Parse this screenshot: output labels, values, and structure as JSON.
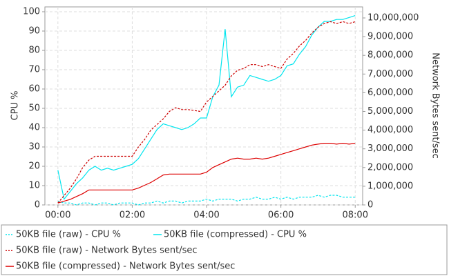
{
  "chart_data": {
    "type": "line",
    "y_label": "CPU %",
    "y2_label": "Network Bytes sent/sec",
    "x": [
      0,
      10,
      20,
      30,
      40,
      50,
      60,
      70,
      80,
      90,
      100,
      110,
      120,
      130,
      140,
      150,
      160,
      170,
      180,
      190,
      200,
      210,
      220,
      230,
      240,
      250,
      260,
      270,
      280,
      290,
      300,
      310,
      320,
      330,
      340,
      350,
      360,
      370,
      380,
      390,
      400,
      410,
      420,
      430,
      440,
      450,
      460,
      470,
      480
    ],
    "xlim": [
      -21,
      492
    ],
    "xticks": [
      {
        "value": 0,
        "label": "00:00"
      },
      {
        "value": 120,
        "label": "02:00"
      },
      {
        "value": 240,
        "label": "04:00"
      },
      {
        "value": 360,
        "label": "06:00"
      },
      {
        "value": 480,
        "label": "08:00"
      }
    ],
    "ylim": [
      0,
      102.5
    ],
    "yticks": [
      0,
      10,
      20,
      30,
      40,
      50,
      60,
      70,
      80,
      90,
      100
    ],
    "y2lim": [
      0,
      10590000
    ],
    "y2ticks": [
      0,
      {
        "value": 1000000,
        "label": "1,000,000"
      },
      {
        "value": 2000000,
        "label": "2,000,000"
      },
      {
        "value": 3000000,
        "label": "3,000,000"
      },
      {
        "value": 4000000,
        "label": "4,000,000"
      },
      {
        "value": 5000000,
        "label": "5,000,000"
      },
      {
        "value": 6000000,
        "label": "6,000,000"
      },
      {
        "value": 7000000,
        "label": "7,000,000"
      },
      {
        "value": 8000000,
        "label": "8,000,000"
      },
      {
        "value": 9000000,
        "label": "9,000,000"
      },
      {
        "value": 10000000,
        "label": "10,000,000"
      }
    ],
    "grid": true,
    "series": [
      {
        "name": "50KB file (raw) - CPU %",
        "color": "#00e5ee",
        "line_style": "dashed",
        "values": [
          2,
          1,
          1,
          0,
          1,
          1,
          0,
          1,
          1,
          0,
          1,
          1,
          1,
          0,
          1,
          1,
          2,
          1,
          2,
          2,
          1,
          2,
          2,
          2,
          3,
          2,
          3,
          3,
          3,
          2,
          3,
          3,
          4,
          3,
          3,
          4,
          3,
          4,
          3,
          4,
          4,
          4,
          5,
          4,
          5,
          5,
          4,
          4,
          4
        ]
      },
      {
        "name": "50KB file (compressed) - CPU %",
        "color": "#00e5ee",
        "line_style": "solid",
        "values": [
          18,
          3,
          7,
          11,
          14,
          18,
          20,
          18,
          19,
          18,
          19,
          20,
          21,
          24,
          29,
          34,
          39,
          42,
          41,
          40,
          39,
          40,
          42,
          45,
          45,
          56,
          62,
          91,
          56,
          61,
          62,
          67,
          66,
          65,
          64,
          65,
          67,
          72,
          73,
          78,
          82,
          88,
          92,
          95,
          95,
          96,
          96,
          97,
          98
        ]
      },
      {
        "name": "50KB file (raw) - Network Bytes sent/sec",
        "color": "#cc0000",
        "line_style": "dashed",
        "axis": "y2",
        "values": [
          100000,
          500000,
          900000,
          1400000,
          2000000,
          2400000,
          2600000,
          2600000,
          2600000,
          2600000,
          2600000,
          2600000,
          2600000,
          3100000,
          3500000,
          4000000,
          4300000,
          4600000,
          5000000,
          5200000,
          5100000,
          5100000,
          5050000,
          5000000,
          5500000,
          5800000,
          6100000,
          6400000,
          6900000,
          7200000,
          7300000,
          7500000,
          7500000,
          7400000,
          7500000,
          7400000,
          7300000,
          7800000,
          8100000,
          8500000,
          8800000,
          9200000,
          9500000,
          9700000,
          9800000,
          9700000,
          9800000,
          9700000,
          9800000
        ]
      },
      {
        "name": "50KB file (compressed) - Network Bytes sent/sec",
        "color": "#dd0000",
        "line_style": "solid",
        "axis": "y2",
        "values": [
          100000,
          200000,
          300000,
          450000,
          600000,
          800000,
          800000,
          800000,
          800000,
          800000,
          800000,
          800000,
          800000,
          900000,
          1050000,
          1200000,
          1400000,
          1600000,
          1650000,
          1650000,
          1650000,
          1650000,
          1650000,
          1650000,
          1750000,
          2000000,
          2150000,
          2300000,
          2450000,
          2500000,
          2450000,
          2450000,
          2500000,
          2450000,
          2500000,
          2600000,
          2700000,
          2800000,
          2900000,
          3000000,
          3100000,
          3200000,
          3250000,
          3300000,
          3300000,
          3250000,
          3300000,
          3250000,
          3300000
        ]
      }
    ]
  }
}
